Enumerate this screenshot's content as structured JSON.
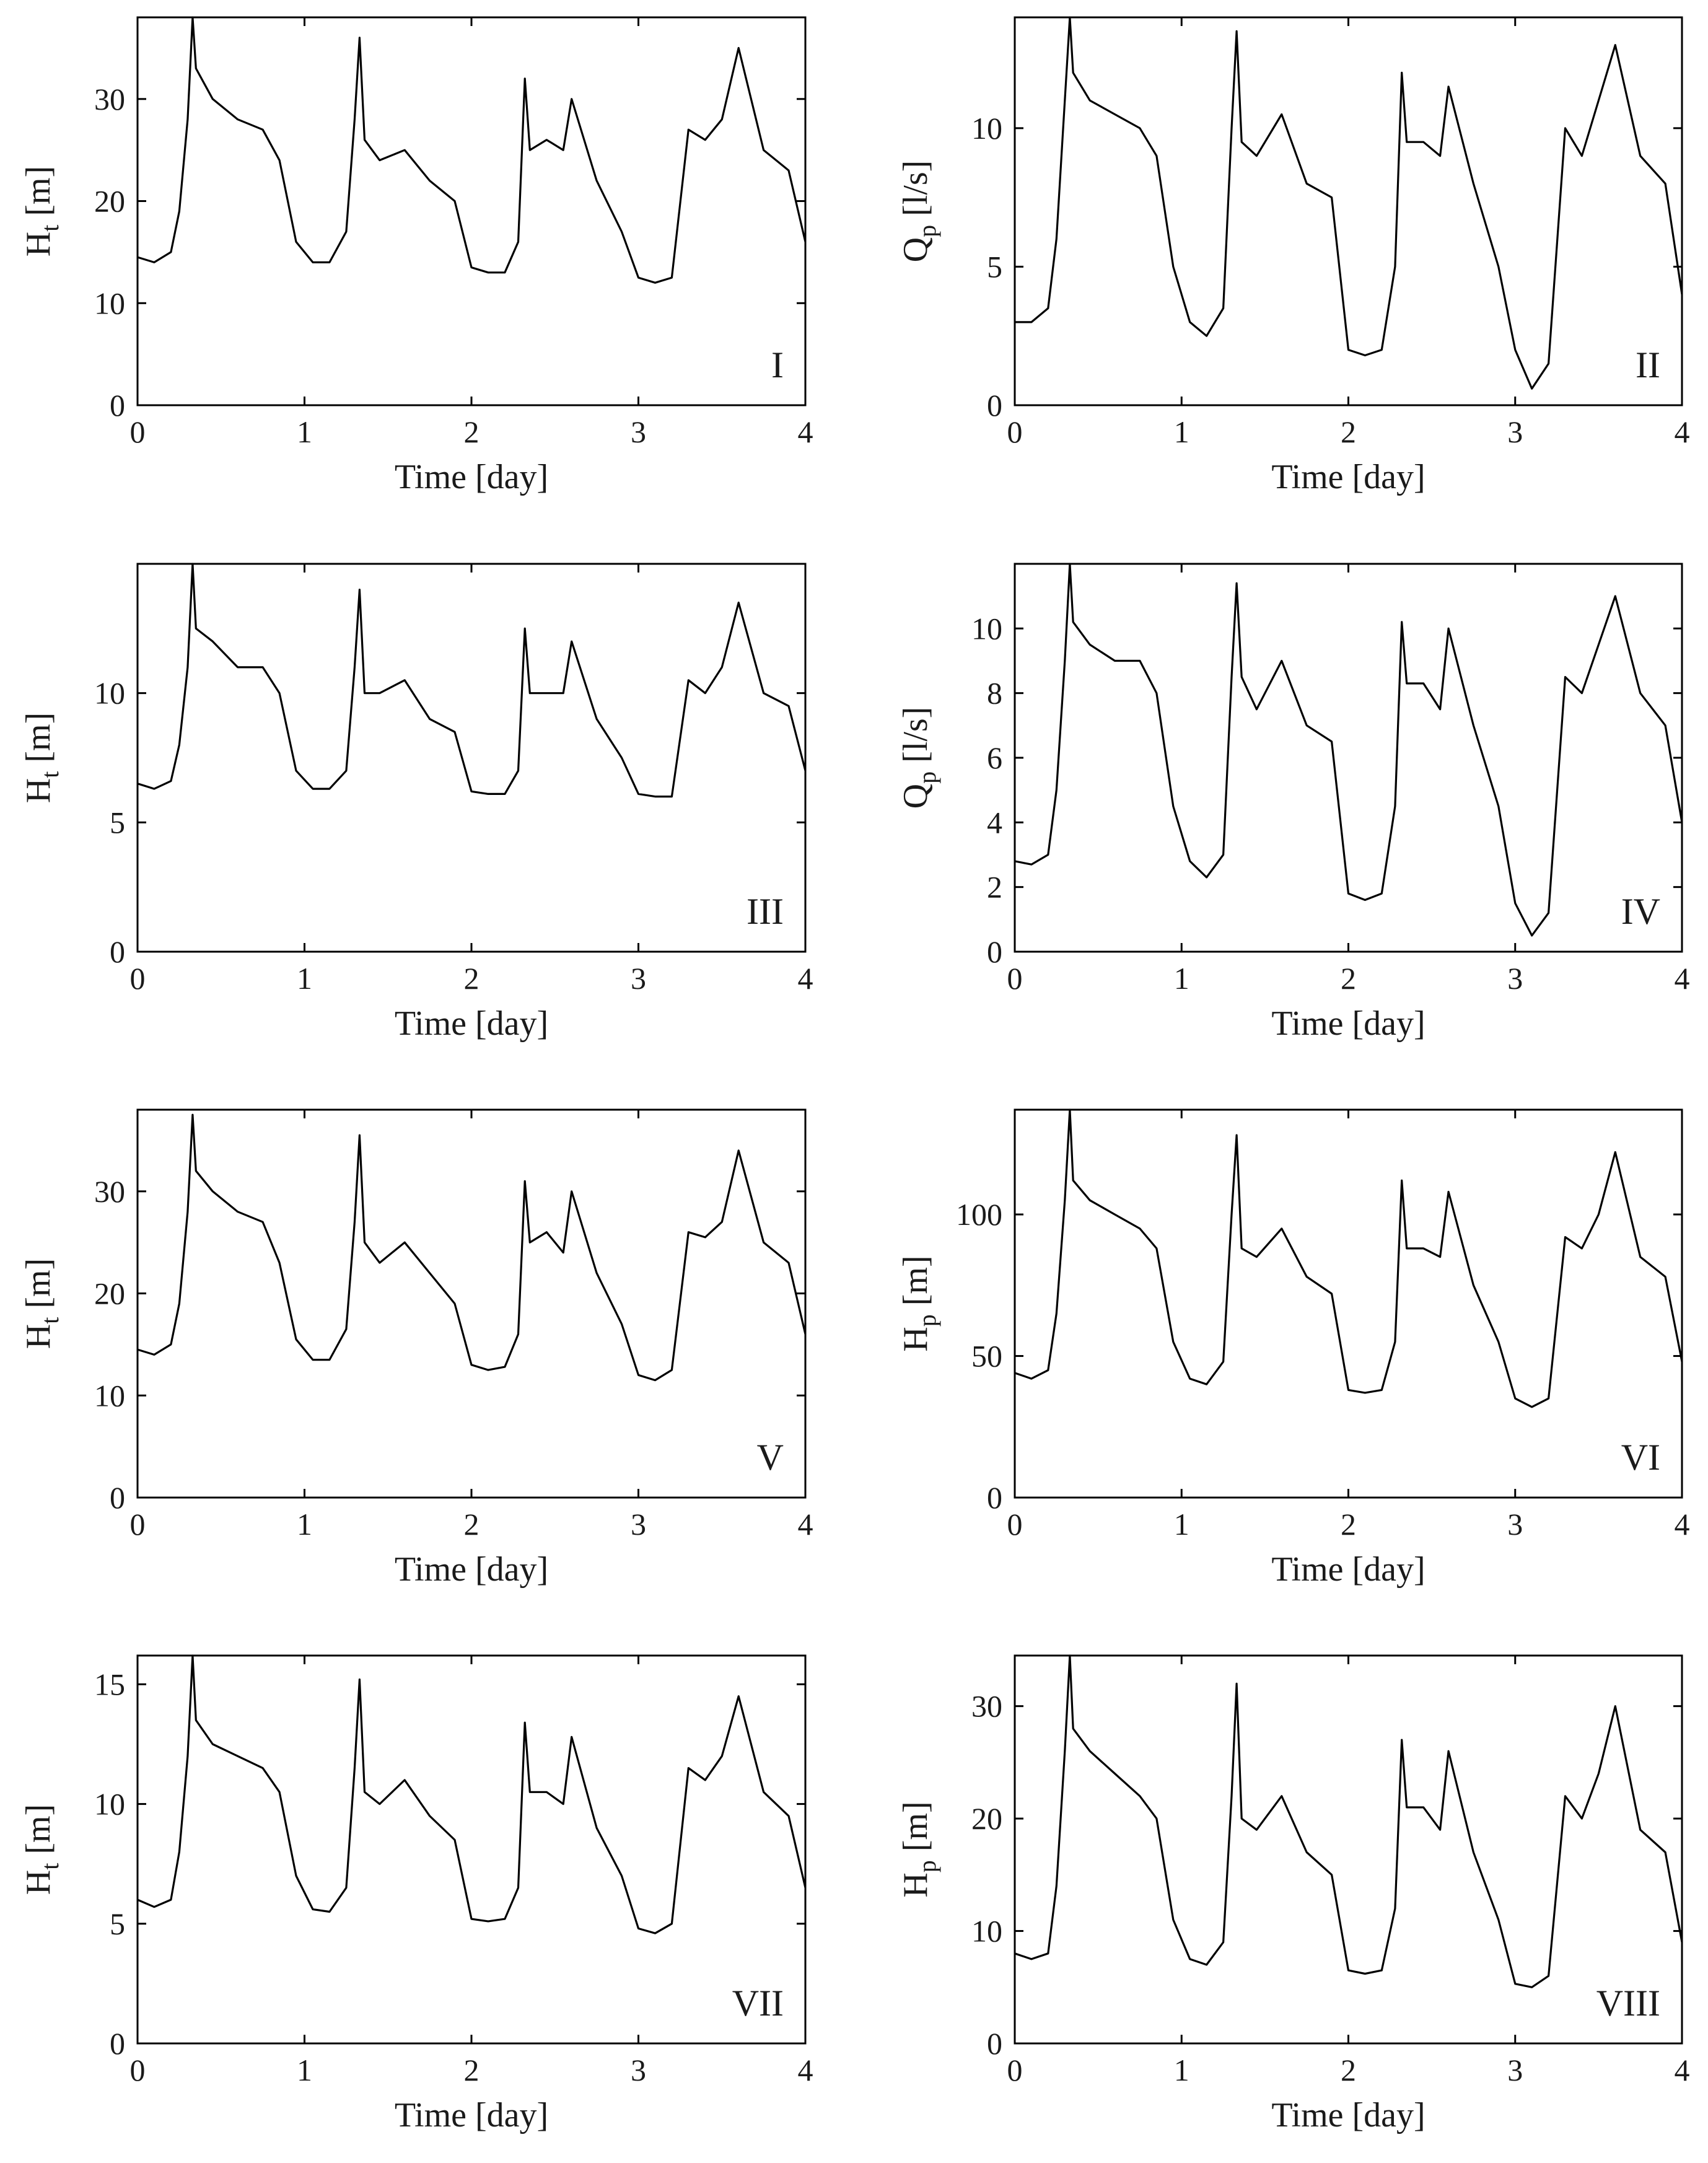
{
  "chart_data": [
    {
      "type": "line",
      "panel": "I",
      "xlabel": "Time [day]",
      "ylabel_main": "H",
      "ylabel_sub": "t",
      "ylabel_unit": " [m]",
      "xlim": [
        0,
        4
      ],
      "ylim": [
        0,
        38
      ],
      "xticks": [
        0,
        1,
        2,
        3,
        4
      ],
      "yticks": [
        0,
        10,
        20,
        30
      ],
      "x": [
        0,
        0.1,
        0.2,
        0.25,
        0.3,
        0.33,
        0.35,
        0.45,
        0.6,
        0.75,
        0.85,
        0.95,
        1.05,
        1.15,
        1.25,
        1.3,
        1.33,
        1.36,
        1.45,
        1.6,
        1.75,
        1.9,
        2.0,
        2.1,
        2.2,
        2.28,
        2.32,
        2.35,
        2.45,
        2.55,
        2.6,
        2.75,
        2.9,
        3.0,
        3.1,
        3.2,
        3.3,
        3.4,
        3.5,
        3.6,
        3.75,
        3.9,
        4.0
      ],
      "y": [
        14.5,
        14,
        15,
        19,
        28,
        38,
        33,
        30,
        28,
        27,
        24,
        16,
        14,
        14,
        17,
        28,
        36,
        26,
        24,
        25,
        22,
        20,
        13.5,
        13,
        13,
        16,
        32,
        25,
        26,
        25,
        30,
        22,
        17,
        12.5,
        12,
        12.5,
        27,
        26,
        28,
        35,
        25,
        23,
        16
      ]
    },
    {
      "type": "line",
      "panel": "II",
      "xlabel": "Time [day]",
      "ylabel_main": "Q",
      "ylabel_sub": "p",
      "ylabel_unit": " [l/s]",
      "xlim": [
        0,
        4
      ],
      "ylim": [
        0,
        14
      ],
      "xticks": [
        0,
        1,
        2,
        3,
        4
      ],
      "yticks": [
        0,
        5,
        10
      ],
      "x": [
        0,
        0.1,
        0.2,
        0.25,
        0.3,
        0.33,
        0.35,
        0.45,
        0.6,
        0.75,
        0.85,
        0.95,
        1.05,
        1.15,
        1.25,
        1.3,
        1.33,
        1.36,
        1.45,
        1.6,
        1.75,
        1.9,
        2.0,
        2.1,
        2.2,
        2.28,
        2.32,
        2.35,
        2.45,
        2.55,
        2.6,
        2.75,
        2.9,
        3.0,
        3.1,
        3.2,
        3.3,
        3.4,
        3.5,
        3.6,
        3.75,
        3.9,
        4.0
      ],
      "y": [
        3,
        3,
        3.5,
        6,
        11,
        14,
        12,
        11,
        10.5,
        10,
        9,
        5,
        3,
        2.5,
        3.5,
        10,
        13.5,
        9.5,
        9,
        10.5,
        8,
        7.5,
        2,
        1.8,
        2,
        5,
        12,
        9.5,
        9.5,
        9,
        11.5,
        8,
        5,
        2,
        0.6,
        1.5,
        10,
        9,
        11,
        13,
        9,
        8,
        4
      ]
    },
    {
      "type": "line",
      "panel": "III",
      "xlabel": "Time [day]",
      "ylabel_main": "H",
      "ylabel_sub": "t",
      "ylabel_unit": " [m]",
      "xlim": [
        0,
        4
      ],
      "ylim": [
        0,
        15
      ],
      "xticks": [
        0,
        1,
        2,
        3,
        4
      ],
      "yticks": [
        0,
        5,
        10
      ],
      "x": [
        0,
        0.1,
        0.2,
        0.25,
        0.3,
        0.33,
        0.35,
        0.45,
        0.6,
        0.75,
        0.85,
        0.95,
        1.05,
        1.15,
        1.25,
        1.3,
        1.33,
        1.36,
        1.45,
        1.6,
        1.75,
        1.9,
        2.0,
        2.1,
        2.2,
        2.28,
        2.32,
        2.35,
        2.45,
        2.55,
        2.6,
        2.75,
        2.9,
        3.0,
        3.1,
        3.2,
        3.3,
        3.4,
        3.5,
        3.6,
        3.75,
        3.9,
        4.0
      ],
      "y": [
        6.5,
        6.3,
        6.6,
        8,
        11,
        15,
        12.5,
        12,
        11,
        11,
        10,
        7,
        6.3,
        6.3,
        7,
        11,
        14,
        10,
        10,
        10.5,
        9,
        8.5,
        6.2,
        6.1,
        6.1,
        7,
        12.5,
        10,
        10,
        10,
        12,
        9,
        7.5,
        6.1,
        6,
        6,
        10.5,
        10,
        11,
        13.5,
        10,
        9.5,
        7
      ]
    },
    {
      "type": "line",
      "panel": "IV",
      "xlabel": "Time [day]",
      "ylabel_main": "Q",
      "ylabel_sub": "p",
      "ylabel_unit": " [l/s]",
      "xlim": [
        0,
        4
      ],
      "ylim": [
        0,
        12
      ],
      "xticks": [
        0,
        1,
        2,
        3,
        4
      ],
      "yticks": [
        0,
        2,
        4,
        6,
        8,
        10
      ],
      "x": [
        0,
        0.1,
        0.2,
        0.25,
        0.3,
        0.33,
        0.35,
        0.45,
        0.6,
        0.75,
        0.85,
        0.95,
        1.05,
        1.15,
        1.25,
        1.3,
        1.33,
        1.36,
        1.45,
        1.6,
        1.75,
        1.9,
        2.0,
        2.1,
        2.2,
        2.28,
        2.32,
        2.35,
        2.45,
        2.55,
        2.6,
        2.75,
        2.9,
        3.0,
        3.1,
        3.2,
        3.3,
        3.4,
        3.5,
        3.6,
        3.75,
        3.9,
        4.0
      ],
      "y": [
        2.8,
        2.7,
        3,
        5,
        9,
        12,
        10.2,
        9.5,
        9,
        9,
        8,
        4.5,
        2.8,
        2.3,
        3,
        8.5,
        11.4,
        8.5,
        7.5,
        9,
        7,
        6.5,
        1.8,
        1.6,
        1.8,
        4.5,
        10.2,
        8.3,
        8.3,
        7.5,
        10,
        7,
        4.5,
        1.5,
        0.5,
        1.2,
        8.5,
        8,
        9.5,
        11,
        8,
        7,
        4
      ]
    },
    {
      "type": "line",
      "panel": "V",
      "xlabel": "Time [day]",
      "ylabel_main": "H",
      "ylabel_sub": "t",
      "ylabel_unit": " [m]",
      "xlim": [
        0,
        4
      ],
      "ylim": [
        0,
        38
      ],
      "xticks": [
        0,
        1,
        2,
        3,
        4
      ],
      "yticks": [
        0,
        10,
        20,
        30
      ],
      "x": [
        0,
        0.1,
        0.2,
        0.25,
        0.3,
        0.33,
        0.35,
        0.45,
        0.6,
        0.75,
        0.85,
        0.95,
        1.05,
        1.15,
        1.25,
        1.3,
        1.33,
        1.36,
        1.45,
        1.6,
        1.75,
        1.9,
        2.0,
        2.1,
        2.2,
        2.28,
        2.32,
        2.35,
        2.45,
        2.55,
        2.6,
        2.75,
        2.9,
        3.0,
        3.1,
        3.2,
        3.3,
        3.4,
        3.5,
        3.6,
        3.75,
        3.9,
        4.0
      ],
      "y": [
        14.5,
        14,
        15,
        19,
        28,
        37.5,
        32,
        30,
        28,
        27,
        23,
        15.5,
        13.5,
        13.5,
        16.5,
        27,
        35.5,
        25,
        23,
        25,
        22,
        19,
        13,
        12.5,
        12.8,
        16,
        31,
        25,
        26,
        24,
        30,
        22,
        17,
        12,
        11.5,
        12.5,
        26,
        25.5,
        27,
        34,
        25,
        23,
        16
      ]
    },
    {
      "type": "line",
      "panel": "VI",
      "xlabel": "Time [day]",
      "ylabel_main": "H",
      "ylabel_sub": "p",
      "ylabel_unit": " [m]",
      "xlim": [
        0,
        4
      ],
      "ylim": [
        0,
        137
      ],
      "xticks": [
        0,
        1,
        2,
        3,
        4
      ],
      "yticks": [
        0,
        50,
        100
      ],
      "x": [
        0,
        0.1,
        0.2,
        0.25,
        0.3,
        0.33,
        0.35,
        0.45,
        0.6,
        0.75,
        0.85,
        0.95,
        1.05,
        1.15,
        1.25,
        1.3,
        1.33,
        1.36,
        1.45,
        1.6,
        1.75,
        1.9,
        2.0,
        2.1,
        2.2,
        2.28,
        2.32,
        2.35,
        2.45,
        2.55,
        2.6,
        2.75,
        2.9,
        3.0,
        3.1,
        3.2,
        3.3,
        3.4,
        3.5,
        3.6,
        3.75,
        3.9,
        4.0
      ],
      "y": [
        44,
        42,
        45,
        65,
        105,
        137,
        112,
        105,
        100,
        95,
        88,
        55,
        42,
        40,
        48,
        100,
        128,
        88,
        85,
        95,
        78,
        72,
        38,
        37,
        38,
        55,
        112,
        88,
        88,
        85,
        108,
        75,
        55,
        35,
        32,
        35,
        92,
        88,
        100,
        122,
        85,
        78,
        48
      ]
    },
    {
      "type": "line",
      "panel": "VII",
      "xlabel": "Time [day]",
      "ylabel_main": "H",
      "ylabel_sub": "t",
      "ylabel_unit": " [m]",
      "xlim": [
        0,
        4
      ],
      "ylim": [
        0,
        16.2
      ],
      "xticks": [
        0,
        1,
        2,
        3,
        4
      ],
      "yticks": [
        0,
        5,
        10,
        15
      ],
      "x": [
        0,
        0.1,
        0.2,
        0.25,
        0.3,
        0.33,
        0.35,
        0.45,
        0.6,
        0.75,
        0.85,
        0.95,
        1.05,
        1.15,
        1.25,
        1.3,
        1.33,
        1.36,
        1.45,
        1.6,
        1.75,
        1.9,
        2.0,
        2.1,
        2.2,
        2.28,
        2.32,
        2.35,
        2.45,
        2.55,
        2.6,
        2.75,
        2.9,
        3.0,
        3.1,
        3.2,
        3.3,
        3.4,
        3.5,
        3.6,
        3.75,
        3.9,
        4.0
      ],
      "y": [
        6,
        5.7,
        6,
        8,
        12,
        16.2,
        13.5,
        12.5,
        12,
        11.5,
        10.5,
        7,
        5.6,
        5.5,
        6.5,
        11.5,
        15.2,
        10.5,
        10,
        11,
        9.5,
        8.5,
        5.2,
        5.1,
        5.2,
        6.5,
        13.4,
        10.5,
        10.5,
        10,
        12.8,
        9,
        7,
        4.8,
        4.6,
        5,
        11.5,
        11,
        12,
        14.5,
        10.5,
        9.5,
        6.5
      ]
    },
    {
      "type": "line",
      "panel": "VIII",
      "xlabel": "Time [day]",
      "ylabel_main": "H",
      "ylabel_sub": "p",
      "ylabel_unit": " [m]",
      "xlim": [
        0,
        4
      ],
      "ylim": [
        0,
        34.5
      ],
      "xticks": [
        0,
        1,
        2,
        3,
        4
      ],
      "yticks": [
        0,
        10,
        20,
        30
      ],
      "x": [
        0,
        0.1,
        0.2,
        0.25,
        0.3,
        0.33,
        0.35,
        0.45,
        0.6,
        0.75,
        0.85,
        0.95,
        1.05,
        1.15,
        1.25,
        1.3,
        1.33,
        1.36,
        1.45,
        1.6,
        1.75,
        1.9,
        2.0,
        2.1,
        2.2,
        2.28,
        2.32,
        2.35,
        2.45,
        2.55,
        2.6,
        2.75,
        2.9,
        3.0,
        3.1,
        3.2,
        3.3,
        3.4,
        3.5,
        3.6,
        3.75,
        3.9,
        4.0
      ],
      "y": [
        8,
        7.5,
        8,
        14,
        26,
        34.5,
        28,
        26,
        24,
        22,
        20,
        11,
        7.5,
        7,
        9,
        22,
        32,
        20,
        19,
        22,
        17,
        15,
        6.5,
        6.2,
        6.5,
        12,
        27,
        21,
        21,
        19,
        26,
        17,
        11,
        5.3,
        5,
        6,
        22,
        20,
        24,
        30,
        19,
        17,
        9
      ]
    }
  ]
}
